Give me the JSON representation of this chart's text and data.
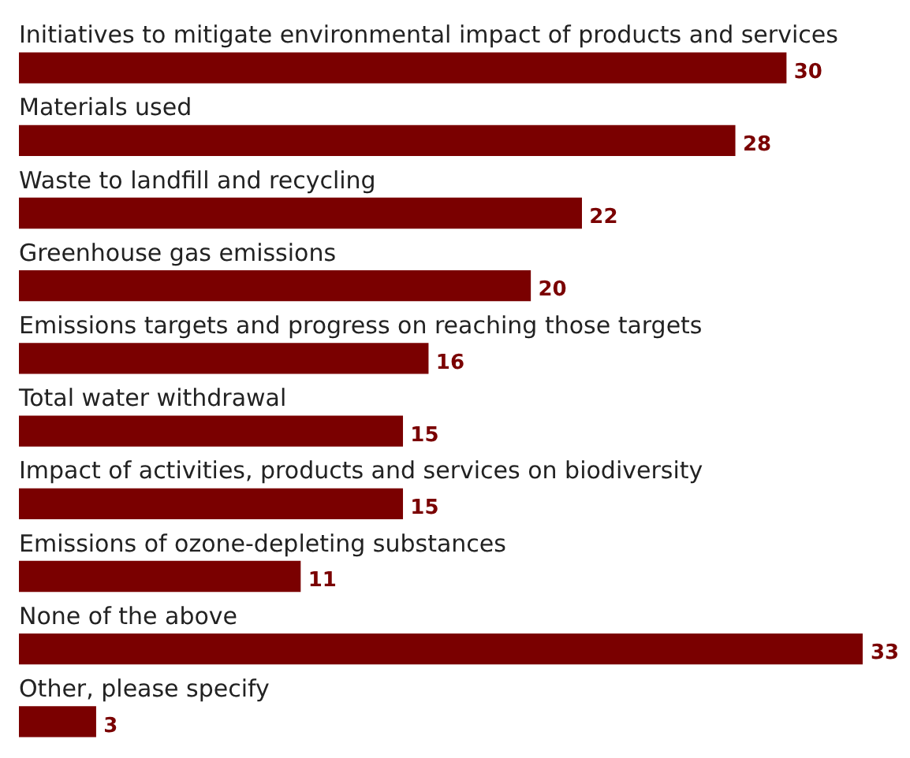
{
  "chart_data": {
    "type": "bar",
    "orientation": "horizontal",
    "categories": [
      "Initiatives to mitigate environmental impact of products and services",
      "Materials used",
      "Waste to landfill and recycling",
      "Greenhouse gas emissions",
      "Emissions targets and progress on reaching those targets",
      "Total water withdrawal",
      "Impact of activities, products and services on biodiversity",
      "Emissions of ozone-depleting substances",
      "None of the above",
      "Other, please specify"
    ],
    "values": [
      30,
      28,
      22,
      20,
      16,
      15,
      15,
      11,
      33,
      3
    ],
    "color": "#7a0000",
    "data_labels": true
  }
}
